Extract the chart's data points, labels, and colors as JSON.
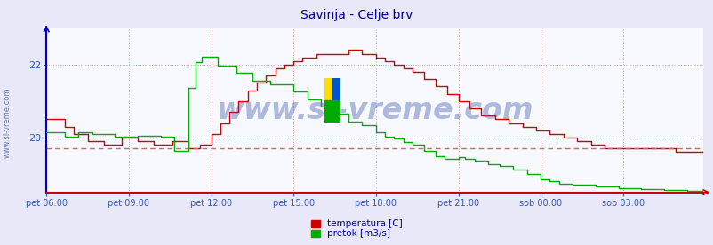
{
  "title": "Savinja - Celje brv",
  "title_color": "#000099",
  "title_fontsize": 10,
  "bg_color": "#e8e8f8",
  "plot_bg_color": "#f8f8ff",
  "watermark": "www.si-vreme.com",
  "watermark_color": "#3355aa",
  "watermark_alpha": 0.38,
  "watermark_fontsize": 24,
  "grid_color": "#dd9999",
  "grid_linestyle": ":",
  "grid_linewidth": 0.7,
  "ytick_color": "#3355aa",
  "xtick_color": "#3355aa",
  "left_border_color": "#0000cc",
  "bottom_border_color": "#cc0000",
  "n_points": 288,
  "temp_color": "#cc0000",
  "flow_color": "#00aa00",
  "temp_avg_color": "#ff5555",
  "temp_avg_linestyle": "--",
  "temp_avg_value": 19.7,
  "ylim": [
    18.5,
    23.0
  ],
  "yticks": [
    20,
    22
  ],
  "flow_ylim": [
    0.0,
    22.0
  ],
  "xtick_labels": [
    "pet 06:00",
    "pet 09:00",
    "pet 12:00",
    "pet 15:00",
    "pet 18:00",
    "pet 21:00",
    "sob 00:00",
    "sob 03:00"
  ],
  "xtick_positions": [
    0,
    36,
    72,
    108,
    144,
    180,
    216,
    252
  ],
  "legend_temp_label": "temperatura [C]",
  "legend_flow_label": "pretok [m3/s]",
  "side_text": "www.si-vreme.com",
  "side_text_color": "#3355aa",
  "side_text_fontsize": 6
}
